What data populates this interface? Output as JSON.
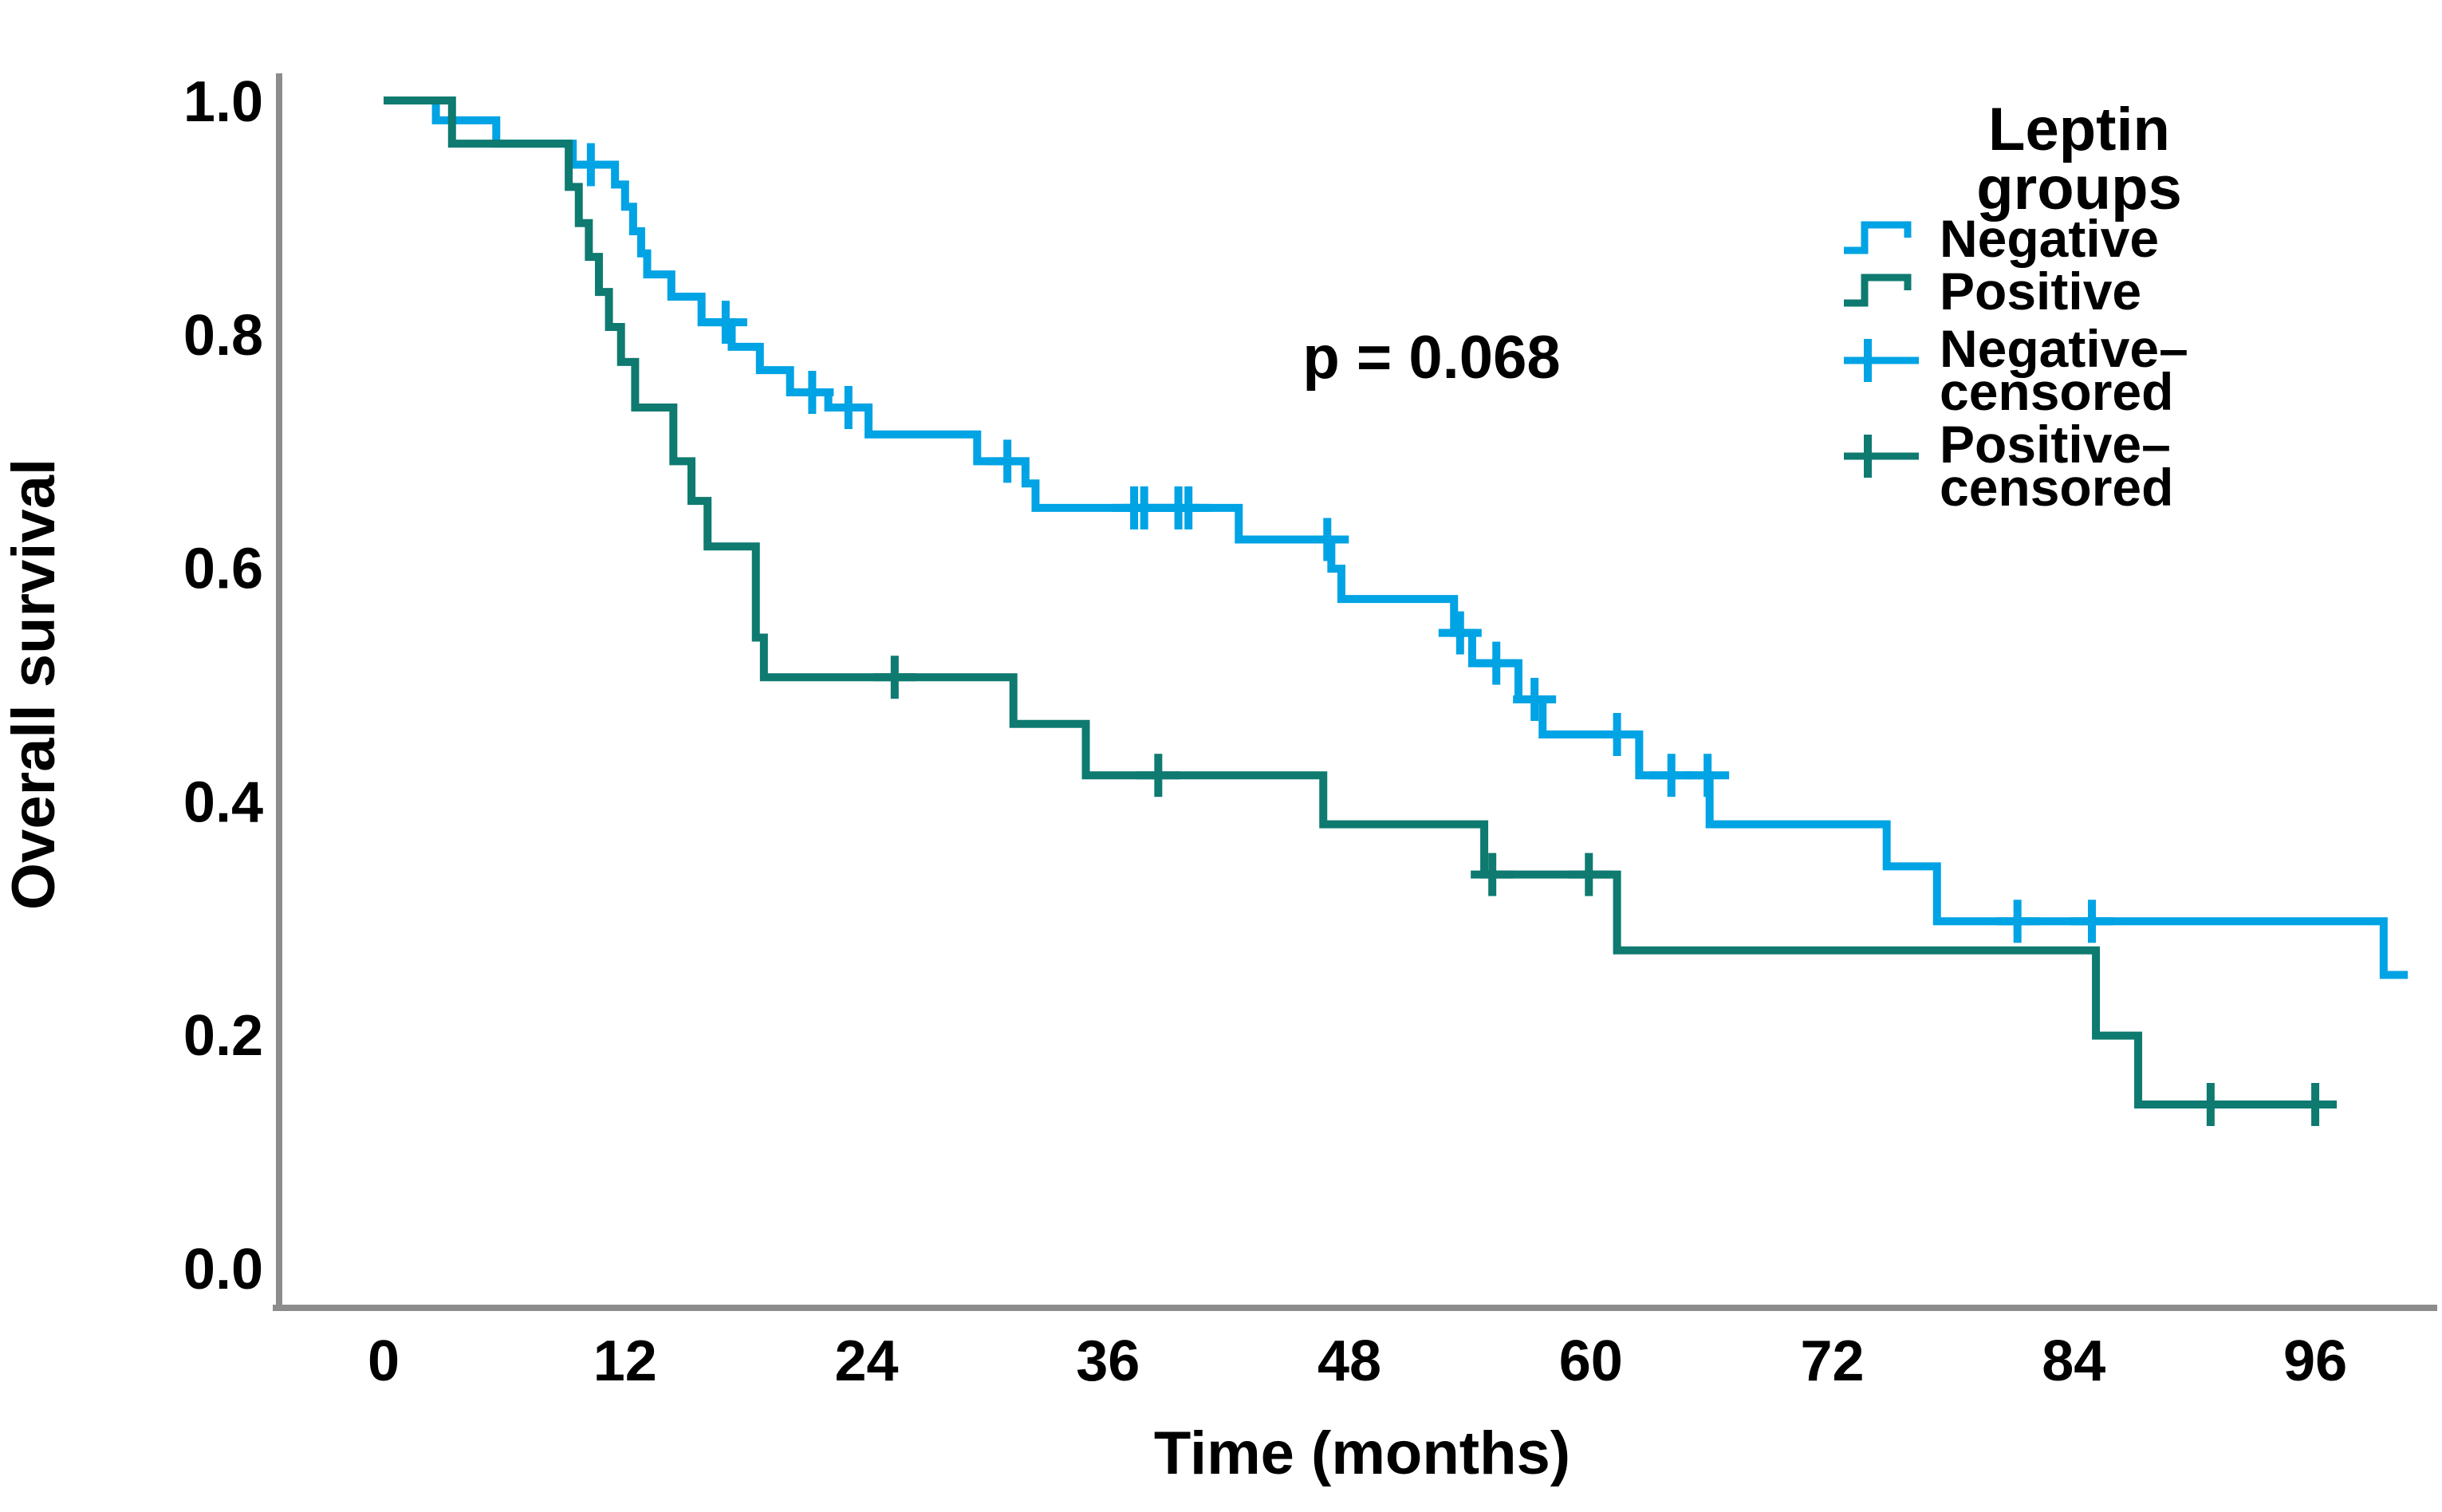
{
  "figure": {
    "background": "#ffffff"
  },
  "chart_data": {
    "type": "line",
    "subtype": "kaplan-meier-step",
    "title": "",
    "xlabel": "Time (months)",
    "ylabel": "Overall survival",
    "xlim": [
      0,
      102
    ],
    "ylim": [
      0.0,
      1.0
    ],
    "grid": false,
    "x_ticks": [
      0,
      12,
      24,
      36,
      48,
      60,
      72,
      84,
      96
    ],
    "y_ticks": [
      {
        "value": 1.0,
        "label": "1.0"
      },
      {
        "value": 0.8,
        "label": "0.8"
      },
      {
        "value": 0.6,
        "label": "0.6"
      },
      {
        "value": 0.4,
        "label": "0.4"
      },
      {
        "value": 0.2,
        "label": "0.2"
      },
      {
        "value": 0.0,
        "label": "0.0"
      }
    ],
    "annotation": {
      "text": "p = 0.068"
    },
    "colors": {
      "negative": "#00a3e4",
      "positive": "#0e7a70",
      "axis": "#8c8c8c",
      "text": "#000000"
    },
    "legend": {
      "position": "top-right",
      "title_lines": [
        "Leptin",
        "groups"
      ],
      "items": [
        {
          "label_lines": [
            "Negative"
          ],
          "glyph": "step",
          "color_key": "negative"
        },
        {
          "label_lines": [
            "Positive"
          ],
          "glyph": "step",
          "color_key": "positive"
        },
        {
          "label_lines": [
            "Negative–",
            "censored"
          ],
          "glyph": "censor",
          "color_key": "negative"
        },
        {
          "label_lines": [
            "Positive–",
            "censored"
          ],
          "glyph": "censor",
          "color_key": "positive"
        }
      ]
    },
    "series": [
      {
        "name": "Negative",
        "role": "survival-curve",
        "color_key": "negative",
        "end_time": 100.6,
        "steps": [
          [
            0,
            1.0
          ],
          [
            2.6,
            0.983
          ],
          [
            5.6,
            0.963
          ],
          [
            9.4,
            0.945
          ],
          [
            11.5,
            0.928
          ],
          [
            12.0,
            0.909
          ],
          [
            12.4,
            0.888
          ],
          [
            12.8,
            0.869
          ],
          [
            13.1,
            0.851
          ],
          [
            14.3,
            0.832
          ],
          [
            15.8,
            0.81
          ],
          [
            17.3,
            0.789
          ],
          [
            18.7,
            0.769
          ],
          [
            20.2,
            0.75
          ],
          [
            22.1,
            0.737
          ],
          [
            24.1,
            0.714
          ],
          [
            29.5,
            0.691
          ],
          [
            31.9,
            0.672
          ],
          [
            32.4,
            0.651
          ],
          [
            42.5,
            0.624
          ],
          [
            47.1,
            0.599
          ],
          [
            47.6,
            0.573
          ],
          [
            53.2,
            0.544
          ],
          [
            54.1,
            0.518
          ],
          [
            56.4,
            0.487
          ],
          [
            57.6,
            0.457
          ],
          [
            62.4,
            0.422
          ],
          [
            65.9,
            0.38
          ],
          [
            74.7,
            0.344
          ],
          [
            77.2,
            0.297
          ],
          [
            99.4,
            0.251
          ]
        ],
        "censored": [
          [
            10.3,
            0.945
          ],
          [
            17.0,
            0.81
          ],
          [
            21.3,
            0.75
          ],
          [
            23.1,
            0.737
          ],
          [
            31.0,
            0.691
          ],
          [
            37.3,
            0.651
          ],
          [
            37.8,
            0.651
          ],
          [
            39.5,
            0.651
          ],
          [
            40.0,
            0.651
          ],
          [
            46.9,
            0.624
          ],
          [
            53.5,
            0.544
          ],
          [
            55.3,
            0.518
          ],
          [
            57.2,
            0.487
          ],
          [
            61.3,
            0.457
          ],
          [
            64.0,
            0.422
          ],
          [
            65.8,
            0.422
          ],
          [
            81.2,
            0.297
          ],
          [
            84.9,
            0.297
          ]
        ]
      },
      {
        "name": "Positive",
        "role": "survival-curve",
        "color_key": "positive",
        "end_time": 96.5,
        "steps": [
          [
            0,
            1.0
          ],
          [
            3.4,
            0.963
          ],
          [
            9.2,
            0.926
          ],
          [
            9.7,
            0.895
          ],
          [
            10.2,
            0.866
          ],
          [
            10.7,
            0.836
          ],
          [
            11.2,
            0.806
          ],
          [
            11.8,
            0.776
          ],
          [
            12.5,
            0.737
          ],
          [
            14.4,
            0.691
          ],
          [
            15.3,
            0.657
          ],
          [
            16.1,
            0.618
          ],
          [
            18.5,
            0.54
          ],
          [
            18.9,
            0.506
          ],
          [
            31.3,
            0.466
          ],
          [
            34.9,
            0.422
          ],
          [
            46.7,
            0.38
          ],
          [
            54.7,
            0.337
          ],
          [
            61.3,
            0.272
          ],
          [
            85.1,
            0.199
          ],
          [
            87.2,
            0.14
          ]
        ],
        "censored": [
          [
            25.4,
            0.506
          ],
          [
            38.5,
            0.422
          ],
          [
            55.1,
            0.337
          ],
          [
            59.9,
            0.337
          ],
          [
            90.8,
            0.14
          ],
          [
            96.0,
            0.14
          ]
        ]
      }
    ]
  }
}
